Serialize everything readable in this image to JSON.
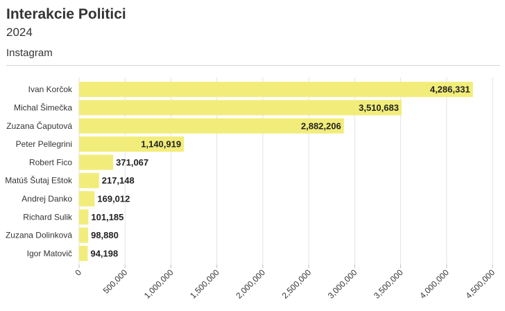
{
  "header": {
    "title": "Interakcie Politici",
    "subtitle": "2024",
    "tab": "Instagram"
  },
  "colors": {
    "bar": "#f2ed7a",
    "grid": "#e3e3e3",
    "label": "#333333",
    "value_label": "#222222"
  },
  "chart_data": {
    "type": "bar",
    "orientation": "horizontal",
    "title": "Interakcie Politici",
    "subtitle": "2024",
    "categories": [
      "Ivan Korčok",
      "Michal Šimečka",
      "Zuzana Čaputová",
      "Peter Pellegrini",
      "Robert Fico",
      "Matúš Šutaj Eštok",
      "Andrej Danko",
      "Richard Sulik",
      "Zuzana Dolinková",
      "Igor Matovič"
    ],
    "values": [
      4286331,
      3510683,
      2882206,
      1140919,
      371067,
      217148,
      169012,
      101185,
      98880,
      94198
    ],
    "value_labels": [
      "4,286,331",
      "3,510,683",
      "2,882,206",
      "1,140,919",
      "371,067",
      "217,148",
      "169,012",
      "101,185",
      "98,880",
      "94,198"
    ],
    "xlim": [
      0,
      4500000
    ],
    "xticks": [
      0,
      500000,
      1000000,
      1500000,
      2000000,
      2500000,
      3000000,
      3500000,
      4000000,
      4500000
    ],
    "xtick_labels": [
      "0",
      "500,000",
      "1,000,000",
      "1,500,000",
      "2,000,000",
      "2,500,000",
      "3,000,000",
      "3,500,000",
      "4,000,000",
      "4,500,000"
    ],
    "xlabel": "",
    "ylabel": "",
    "grid": true,
    "legend": "none"
  }
}
